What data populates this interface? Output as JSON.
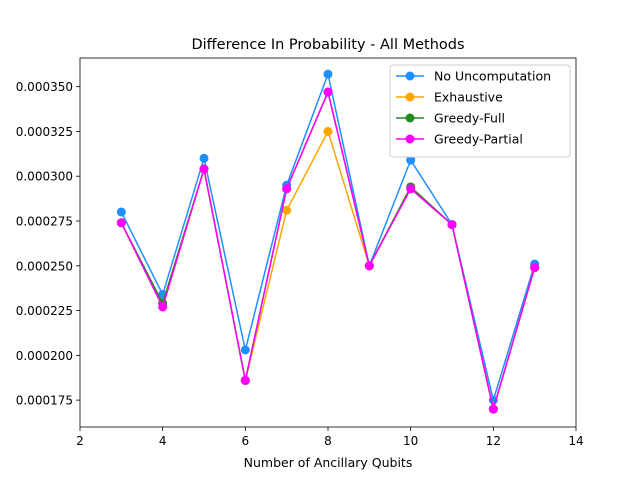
{
  "chart_data": {
    "type": "line",
    "title": "Difference In Probability - All Methods",
    "xlabel": "Number of Ancillary Qubits",
    "ylabel": "",
    "xlim": [
      2,
      14
    ],
    "ylim": [
      0.00016,
      0.000366
    ],
    "x_ticks": [
      2,
      4,
      6,
      8,
      10,
      12,
      14
    ],
    "y_ticks": [
      0.000175,
      0.0002,
      0.000225,
      0.00025,
      0.000275,
      0.0003,
      0.000325,
      0.00035
    ],
    "x_tick_labels": [
      "2",
      "4",
      "6",
      "8",
      "10",
      "12",
      "14"
    ],
    "y_tick_labels": [
      "0.000175",
      "0.000200",
      "0.000225",
      "0.000250",
      "0.000275",
      "0.000300",
      "0.000325",
      "0.000350"
    ],
    "grid": false,
    "legend_position": "top-right",
    "x": [
      3,
      4,
      5,
      6,
      7,
      8,
      9,
      10,
      11,
      12,
      13
    ],
    "series": [
      {
        "name": "No Uncomputation",
        "color": "#1e90ff",
        "values": [
          0.00028,
          0.000234,
          0.00031,
          0.000203,
          0.000295,
          0.000357,
          0.00025,
          0.000309,
          0.000273,
          0.000175,
          0.000251
        ]
      },
      {
        "name": "Exhaustive",
        "color": "#ffa500",
        "values": [
          0.000274,
          0.000229,
          0.000304,
          0.000186,
          0.000281,
          0.000325,
          0.00025,
          0.000294,
          0.000273,
          0.00017,
          0.000249
        ]
      },
      {
        "name": "Greedy-Full",
        "color": "#228b22",
        "values": [
          0.000274,
          0.000229,
          0.000304,
          0.000186,
          0.000293,
          0.000347,
          0.00025,
          0.000294,
          0.000273,
          0.00017,
          0.000249
        ]
      },
      {
        "name": "Greedy-Partial",
        "color": "#ff00ff",
        "values": [
          0.000274,
          0.000227,
          0.000304,
          0.000186,
          0.000293,
          0.000347,
          0.00025,
          0.000293,
          0.000273,
          0.00017,
          0.000249
        ]
      }
    ]
  }
}
